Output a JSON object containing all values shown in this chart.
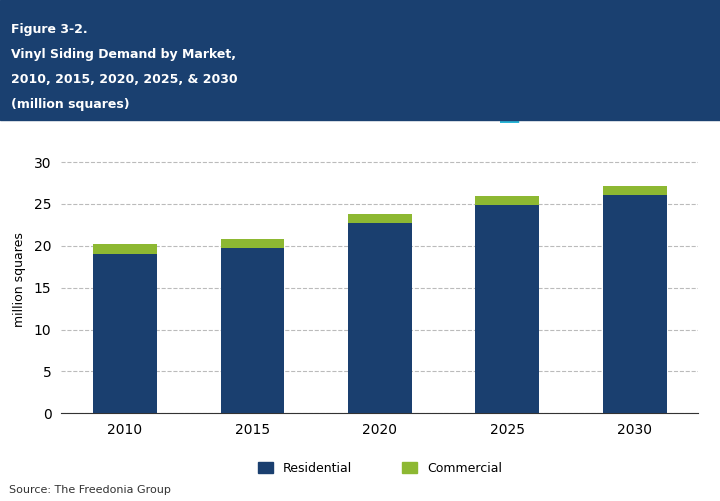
{
  "years": [
    "2010",
    "2015",
    "2020",
    "2025",
    "2030"
  ],
  "residential": [
    19.0,
    19.7,
    22.7,
    24.9,
    26.1
  ],
  "commercial": [
    1.2,
    1.1,
    1.1,
    1.0,
    1.0
  ],
  "residential_color": "#1a3f6f",
  "commercial_color": "#8db832",
  "header_bg": "#1a4070",
  "header_text_color": "#ffffff",
  "header_line1": "Figure 3-2.",
  "header_line2": "Vinyl Siding Demand by Market,",
  "header_line3": "2010, 2015, 2020, 2025, & 2030",
  "header_line4": "(million squares)",
  "ylabel": "million squares",
  "ylim": [
    0,
    32
  ],
  "yticks": [
    0,
    5,
    10,
    15,
    20,
    25,
    30
  ],
  "source_text": "Source: The Freedonia Group",
  "legend_residential": "Residential",
  "legend_commercial": "Commercial",
  "bar_width": 0.5,
  "background_color": "#ffffff",
  "plot_bg": "#ffffff",
  "grid_color": "#bbbbbb"
}
